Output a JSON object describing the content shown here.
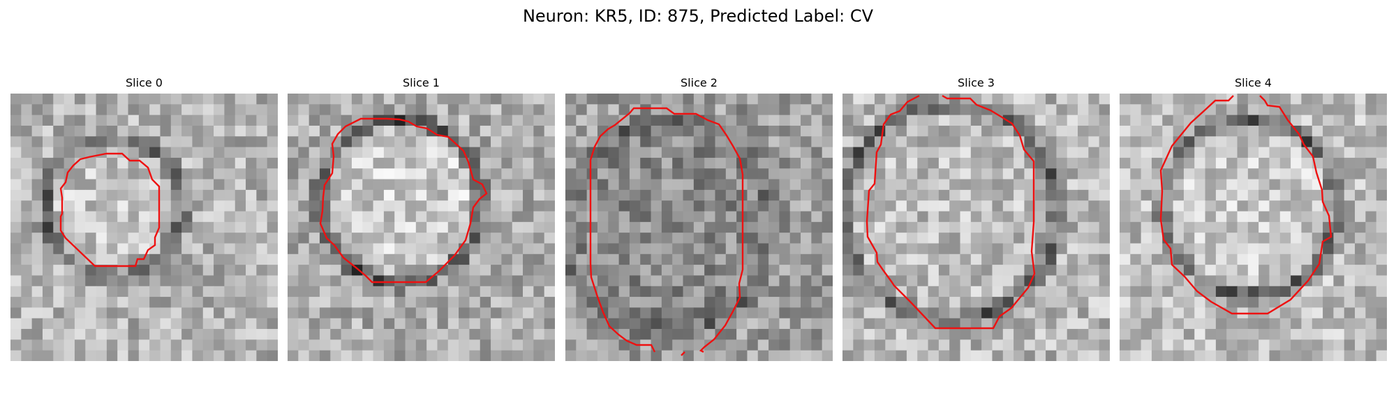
{
  "figure": {
    "title": "Neuron: KR5, ID: 875, Predicted Label: CV"
  },
  "colors": {
    "contour": "#ee1111",
    "background": "#ffffff",
    "colormap": "grayscale"
  },
  "panels": [
    {
      "title": "Slice 0",
      "cells": "25x25 grayscale micrograph slice, dark ring around a bright round body",
      "seed": 11
    },
    {
      "title": "Slice 1",
      "cells": "25x25 grayscale micrograph slice, dark ring around a bright round body",
      "seed": 23
    },
    {
      "title": "Slice 2",
      "cells": "25x25 grayscale micrograph slice, mostly uniform mid-gray texture",
      "seed": 37
    },
    {
      "title": "Slice 3",
      "cells": "25x25 grayscale micrograph slice, dark ring around a bright round body",
      "seed": 41
    },
    {
      "title": "Slice 4",
      "cells": "25x25 grayscale micrograph slice, dark ring around a bright round body",
      "seed": 53
    }
  ]
}
